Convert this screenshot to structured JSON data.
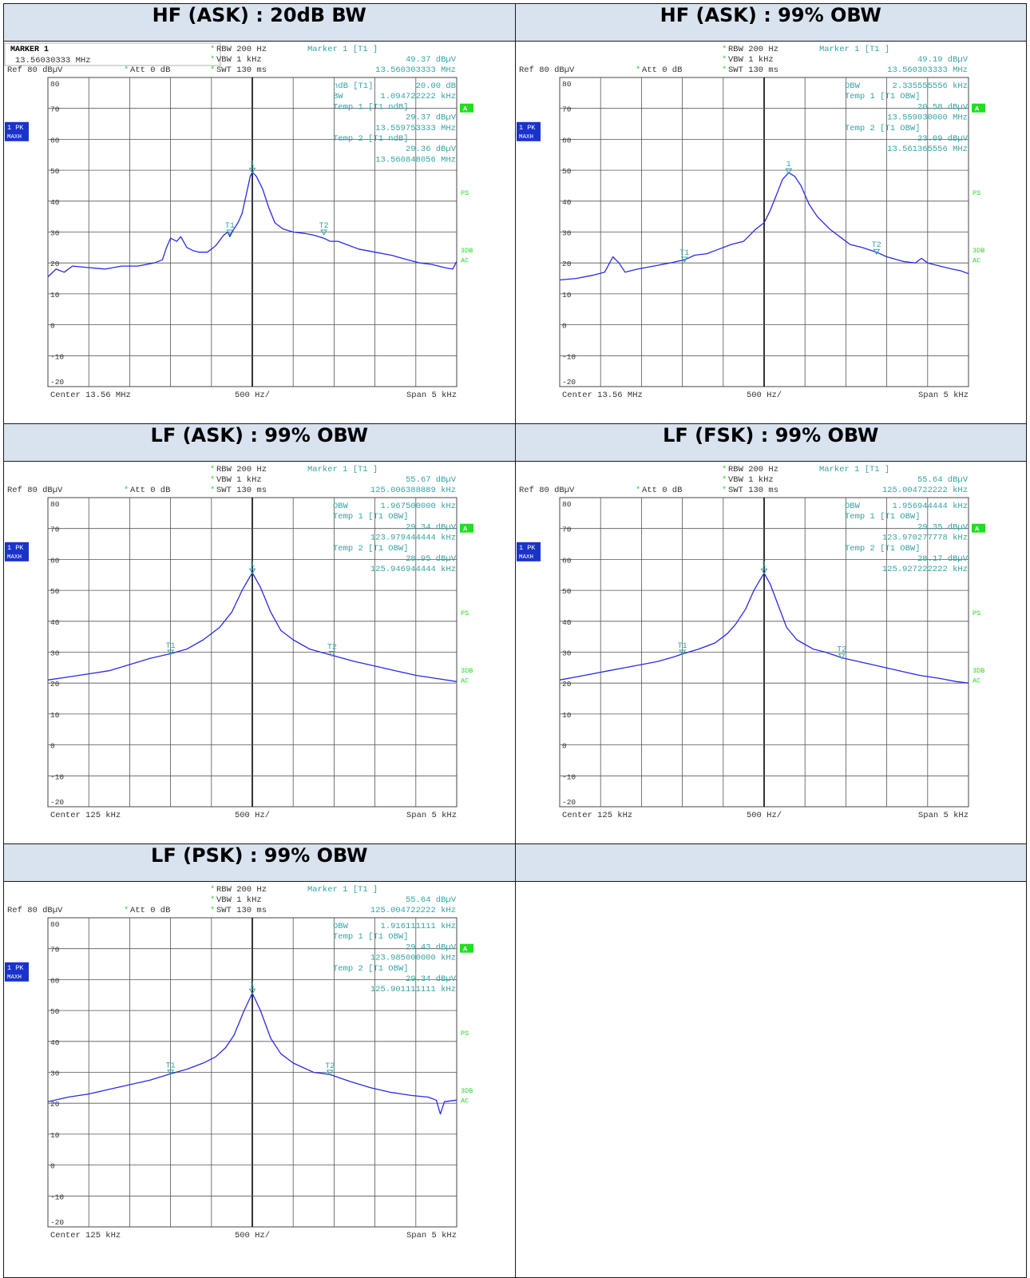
{
  "cells": [
    {
      "title": "HF (ASK) : 20dB BW"
    },
    {
      "title": "HF (ASK) : 99% OBW"
    },
    {
      "title": "LF (ASK) : 99% OBW"
    },
    {
      "title": "LF (FSK) : 99% OBW"
    },
    {
      "title": "LF (PSK) : 99% OBW"
    },
    {
      "title": ""
    }
  ],
  "colors": {
    "trace": "#2a2ae6",
    "info": "#36a3a3",
    "green": "#22dd22",
    "header_bg": "#d9e2ef",
    "badge": "#1a33cc"
  },
  "chart_data": [
    {
      "type": "line",
      "title": "HF (ASK) : 20dB BW",
      "marker_box": {
        "label": "MARKER 1",
        "value": "13.56030333 MHz"
      },
      "settings": {
        "rbw": "RBW 200 Hz",
        "vbw": "VBW 1 kHz",
        "swt": "SWT 130 ms",
        "ref": "Ref  80 dBµV",
        "att": "Att   0 dB"
      },
      "marker": {
        "title": "Marker 1 [T1 ]",
        "level": "49.37 dBµV",
        "freq": "13.560303333 MHz"
      },
      "readout": [
        {
          "k": "ndB [T1]",
          "v": "20.00 dB"
        },
        {
          "k": "BW",
          "v": "1.094722222 kHz"
        },
        {
          "k": "Temp 1 [T1 ndB]",
          "v": ""
        },
        {
          "k": "",
          "v": "29.37 dBµV"
        },
        {
          "k": "",
          "v": "13.559753333 MHz"
        },
        {
          "k": "Temp 2 [T1 ndB]",
          "v": ""
        },
        {
          "k": "",
          "v": "29.36 dBµV"
        },
        {
          "k": "",
          "v": "13.560848056 MHz"
        }
      ],
      "trace_mode": [
        "1 PK",
        "MAXH"
      ],
      "side_labels": {
        "a": "A",
        "ps": "PS",
        "db3": "3DB",
        "ac": "AC"
      },
      "footer": {
        "center": "Center  13.56 MHz",
        "div": "500 Hz/",
        "span": "Span  5 kHz"
      },
      "ylim": [
        -20,
        80
      ],
      "y_ticks": [
        80,
        70,
        60,
        50,
        40,
        30,
        20,
        10,
        0,
        -10,
        -20
      ],
      "x_divisions": 10,
      "grid": true,
      "markers": [
        {
          "label": "1",
          "x": 5.0,
          "y": 49.37
        },
        {
          "label": "T1",
          "x": 4.45,
          "y": 29.37
        },
        {
          "label": "T2",
          "x": 6.75,
          "y": 29.36
        }
      ],
      "points": [
        [
          0,
          15.5
        ],
        [
          0.2,
          18
        ],
        [
          0.4,
          17
        ],
        [
          0.6,
          19
        ],
        [
          1.0,
          18.5
        ],
        [
          1.4,
          18
        ],
        [
          1.8,
          19
        ],
        [
          2.2,
          19
        ],
        [
          2.6,
          20
        ],
        [
          2.8,
          21
        ],
        [
          2.9,
          25
        ],
        [
          3.0,
          28
        ],
        [
          3.15,
          27
        ],
        [
          3.25,
          28.5
        ],
        [
          3.4,
          25
        ],
        [
          3.55,
          24
        ],
        [
          3.7,
          23.5
        ],
        [
          3.9,
          23.5
        ],
        [
          4.1,
          25.5
        ],
        [
          4.3,
          29
        ],
        [
          4.4,
          30
        ],
        [
          4.45,
          28.5
        ],
        [
          4.55,
          31
        ],
        [
          4.65,
          33
        ],
        [
          4.75,
          36
        ],
        [
          4.85,
          42
        ],
        [
          4.95,
          48
        ],
        [
          5.0,
          49.4
        ],
        [
          5.1,
          48
        ],
        [
          5.25,
          44
        ],
        [
          5.4,
          38
        ],
        [
          5.55,
          33
        ],
        [
          5.75,
          31
        ],
        [
          6.0,
          30
        ],
        [
          6.3,
          29.5
        ],
        [
          6.5,
          29
        ],
        [
          6.75,
          28
        ],
        [
          6.9,
          27
        ],
        [
          7.1,
          27
        ],
        [
          7.3,
          26
        ],
        [
          7.6,
          24.5
        ],
        [
          8.0,
          23.5
        ],
        [
          8.4,
          22.5
        ],
        [
          8.8,
          21
        ],
        [
          9.1,
          20
        ],
        [
          9.4,
          19.5
        ],
        [
          9.7,
          18.5
        ],
        [
          9.9,
          18
        ],
        [
          10,
          20.5
        ]
      ]
    },
    {
      "type": "line",
      "title": "HF (ASK) : 99% OBW",
      "settings": {
        "rbw": "RBW 200 Hz",
        "vbw": "VBW 1 kHz",
        "swt": "SWT 130 ms",
        "ref": "Ref  80 dBµV",
        "att": "Att   0 dB"
      },
      "marker": {
        "title": "Marker 1 [T1 ]",
        "level": "49.19 dBµV",
        "freq": "13.560303333 MHz"
      },
      "readout": [
        {
          "k": "OBW",
          "v": "2.335555556 kHz"
        },
        {
          "k": "Temp 1 [T1 OBW]",
          "v": ""
        },
        {
          "k": "",
          "v": "20.58 dBµV"
        },
        {
          "k": "",
          "v": "13.559030000 MHz"
        },
        {
          "k": "Temp 2 [T1 OBW]",
          "v": ""
        },
        {
          "k": "",
          "v": "23.09 dBµV"
        },
        {
          "k": "",
          "v": "13.561365556 MHz"
        }
      ],
      "trace_mode": [
        "1 PK",
        "MAXH"
      ],
      "side_labels": {
        "a": "A",
        "ps": "PS",
        "db3": "3DB",
        "ac": "AC"
      },
      "footer": {
        "center": "Center  13.56 MHz",
        "div": "500 Hz/",
        "span": "Span  5 kHz"
      },
      "ylim": [
        -20,
        80
      ],
      "y_ticks": [
        80,
        70,
        60,
        50,
        40,
        30,
        20,
        10,
        0,
        -10,
        -20
      ],
      "x_divisions": 10,
      "grid": true,
      "markers": [
        {
          "label": "1",
          "x": 5.6,
          "y": 49.19
        },
        {
          "label": "T1",
          "x": 3.05,
          "y": 20.58
        },
        {
          "label": "T2",
          "x": 7.75,
          "y": 23.09
        }
      ],
      "points": [
        [
          0,
          14.5
        ],
        [
          0.4,
          15
        ],
        [
          0.8,
          16
        ],
        [
          1.1,
          17
        ],
        [
          1.3,
          22
        ],
        [
          1.45,
          20
        ],
        [
          1.6,
          17
        ],
        [
          1.9,
          18
        ],
        [
          2.3,
          19
        ],
        [
          2.7,
          20
        ],
        [
          3.05,
          21
        ],
        [
          3.3,
          22.5
        ],
        [
          3.6,
          23
        ],
        [
          3.9,
          24.5
        ],
        [
          4.2,
          26
        ],
        [
          4.5,
          27
        ],
        [
          4.8,
          31
        ],
        [
          5.0,
          33
        ],
        [
          5.15,
          37
        ],
        [
          5.3,
          42
        ],
        [
          5.45,
          47
        ],
        [
          5.6,
          49.2
        ],
        [
          5.75,
          48
        ],
        [
          5.9,
          45
        ],
        [
          6.1,
          39
        ],
        [
          6.3,
          35
        ],
        [
          6.6,
          31
        ],
        [
          6.9,
          28
        ],
        [
          7.1,
          26
        ],
        [
          7.4,
          25
        ],
        [
          7.75,
          23.5
        ],
        [
          8.0,
          22
        ],
        [
          8.4,
          20.5
        ],
        [
          8.7,
          20
        ],
        [
          8.85,
          21.5
        ],
        [
          9.0,
          20
        ],
        [
          9.3,
          19
        ],
        [
          9.6,
          18
        ],
        [
          9.8,
          17.5
        ],
        [
          10,
          16.5
        ]
      ]
    },
    {
      "type": "line",
      "title": "LF (ASK) : 99% OBW",
      "settings": {
        "rbw": "RBW 200 Hz",
        "vbw": "VBW 1 kHz",
        "swt": "SWT 130 ms",
        "ref": "Ref  80 dBµV",
        "att": "Att   0 dB"
      },
      "marker": {
        "title": "Marker 1 [T1 ]",
        "level": "55.67 dBµV",
        "freq": "125.006388889 kHz"
      },
      "readout": [
        {
          "k": "OBW",
          "v": "1.967500000 kHz"
        },
        {
          "k": "Temp 1 [T1 OBW]",
          "v": ""
        },
        {
          "k": "",
          "v": "29.34 dBµV"
        },
        {
          "k": "",
          "v": "123.979444444 kHz"
        },
        {
          "k": "Temp 2 [T1 OBW]",
          "v": ""
        },
        {
          "k": "",
          "v": "28.95 dBµV"
        },
        {
          "k": "",
          "v": "125.946944444 kHz"
        }
      ],
      "trace_mode": [
        "1 PK",
        "MAXH"
      ],
      "side_labels": {
        "a": "A",
        "ps": "PS",
        "db3": "3DB",
        "ac": "AC"
      },
      "footer": {
        "center": "Center  125 kHz",
        "div": "500 Hz/",
        "span": "Span  5 kHz"
      },
      "ylim": [
        -20,
        80
      ],
      "y_ticks": [
        80,
        70,
        60,
        50,
        40,
        30,
        20,
        10,
        0,
        -10,
        -20
      ],
      "x_divisions": 10,
      "grid": true,
      "markers": [
        {
          "label": "1",
          "x": 5.0,
          "y": 55.67
        },
        {
          "label": "T1",
          "x": 3.0,
          "y": 29.34
        },
        {
          "label": "T2",
          "x": 6.95,
          "y": 28.95
        }
      ],
      "points": [
        [
          0,
          21
        ],
        [
          0.5,
          22
        ],
        [
          1.0,
          23
        ],
        [
          1.5,
          24
        ],
        [
          2.0,
          26
        ],
        [
          2.5,
          28
        ],
        [
          3.0,
          29.5
        ],
        [
          3.4,
          31
        ],
        [
          3.8,
          34
        ],
        [
          4.2,
          38
        ],
        [
          4.5,
          43
        ],
        [
          4.75,
          50
        ],
        [
          5.0,
          55.7
        ],
        [
          5.2,
          51
        ],
        [
          5.45,
          43
        ],
        [
          5.7,
          37
        ],
        [
          6.0,
          34
        ],
        [
          6.4,
          31
        ],
        [
          6.95,
          29
        ],
        [
          7.5,
          27
        ],
        [
          8.0,
          25.5
        ],
        [
          8.5,
          24
        ],
        [
          9.0,
          22.5
        ],
        [
          9.5,
          21.5
        ],
        [
          10,
          20.5
        ]
      ]
    },
    {
      "type": "line",
      "title": "LF (FSK) : 99% OBW",
      "settings": {
        "rbw": "RBW 200 Hz",
        "vbw": "VBW 1 kHz",
        "swt": "SWT 130 ms",
        "ref": "Ref  80 dBµV",
        "att": "Att   0 dB"
      },
      "marker": {
        "title": "Marker 1 [T1 ]",
        "level": "55.64 dBµV",
        "freq": "125.004722222 kHz"
      },
      "readout": [
        {
          "k": "OBW",
          "v": "1.956944444 kHz"
        },
        {
          "k": "Temp 1 [T1 OBW]",
          "v": ""
        },
        {
          "k": "",
          "v": "29.35 dBµV"
        },
        {
          "k": "",
          "v": "123.970277778 kHz"
        },
        {
          "k": "Temp 2 [T1 OBW]",
          "v": ""
        },
        {
          "k": "",
          "v": "28.17 dBµV"
        },
        {
          "k": "",
          "v": "125.927222222 kHz"
        }
      ],
      "trace_mode": [
        "1 PK",
        "MAXH"
      ],
      "side_labels": {
        "a": "A",
        "ps": "PS",
        "db3": "3DB",
        "ac": "AC"
      },
      "footer": {
        "center": "Center  125 kHz",
        "div": "500 Hz/",
        "span": "Span  5 kHz"
      },
      "ylim": [
        -20,
        80
      ],
      "y_ticks": [
        80,
        70,
        60,
        50,
        40,
        30,
        20,
        10,
        0,
        -10,
        -20
      ],
      "x_divisions": 10,
      "grid": true,
      "markers": [
        {
          "label": "1",
          "x": 5.0,
          "y": 55.64
        },
        {
          "label": "T1",
          "x": 3.0,
          "y": 29.35
        },
        {
          "label": "T2",
          "x": 6.9,
          "y": 28.17
        }
      ],
      "points": [
        [
          0,
          21
        ],
        [
          0.4,
          22
        ],
        [
          0.8,
          23
        ],
        [
          1.2,
          24
        ],
        [
          1.6,
          25
        ],
        [
          2.0,
          26
        ],
        [
          2.4,
          27
        ],
        [
          2.8,
          28.5
        ],
        [
          3.0,
          29.4
        ],
        [
          3.4,
          31
        ],
        [
          3.8,
          33
        ],
        [
          4.1,
          36
        ],
        [
          4.3,
          39
        ],
        [
          4.55,
          44
        ],
        [
          4.75,
          50
        ],
        [
          5.0,
          55.6
        ],
        [
          5.15,
          52
        ],
        [
          5.35,
          45
        ],
        [
          5.55,
          38
        ],
        [
          5.8,
          34
        ],
        [
          6.2,
          31
        ],
        [
          6.5,
          30
        ],
        [
          6.9,
          28.2
        ],
        [
          7.3,
          27
        ],
        [
          7.8,
          25.5
        ],
        [
          8.3,
          24
        ],
        [
          8.8,
          22.5
        ],
        [
          9.3,
          21.5
        ],
        [
          9.7,
          20.5
        ],
        [
          10,
          20
        ]
      ]
    },
    {
      "type": "line",
      "title": "LF (PSK) : 99% OBW",
      "settings": {
        "rbw": "RBW 200 Hz",
        "vbw": "VBW 1 kHz",
        "swt": "SWT 130 ms",
        "ref": "Ref  80 dBµV",
        "att": "Att   0 dB"
      },
      "marker": {
        "title": "Marker 1 [T1 ]",
        "level": "55.64 dBµV",
        "freq": "125.004722222 kHz"
      },
      "readout": [
        {
          "k": "OBW",
          "v": "1.916111111 kHz"
        },
        {
          "k": "Temp 1 [T1 OBW]",
          "v": ""
        },
        {
          "k": "",
          "v": "29.43 dBµV"
        },
        {
          "k": "",
          "v": "123.985000000 kHz"
        },
        {
          "k": "Temp 2 [T1 OBW]",
          "v": ""
        },
        {
          "k": "",
          "v": "29.34 dBµV"
        },
        {
          "k": "",
          "v": "125.901111111 kHz"
        }
      ],
      "trace_mode": [
        "1 PK",
        "MAXH"
      ],
      "side_labels": {
        "a": "A",
        "ps": "PS",
        "db3": "3DB",
        "ac": "AC"
      },
      "footer": {
        "center": "Center  125 kHz",
        "div": "500 Hz/",
        "span": "Span  5 kHz"
      },
      "ylim": [
        -20,
        80
      ],
      "y_ticks": [
        80,
        70,
        60,
        50,
        40,
        30,
        20,
        10,
        0,
        -10,
        -20
      ],
      "x_divisions": 10,
      "grid": true,
      "markers": [
        {
          "label": "1",
          "x": 5.0,
          "y": 55.64
        },
        {
          "label": "T1",
          "x": 3.0,
          "y": 29.43
        },
        {
          "label": "T2",
          "x": 6.9,
          "y": 29.34
        }
      ],
      "points": [
        [
          0,
          20.5
        ],
        [
          0.5,
          22
        ],
        [
          1.0,
          23
        ],
        [
          1.5,
          24.5
        ],
        [
          2.0,
          26
        ],
        [
          2.5,
          27.5
        ],
        [
          3.0,
          29.5
        ],
        [
          3.4,
          31
        ],
        [
          3.8,
          33
        ],
        [
          4.1,
          35
        ],
        [
          4.35,
          38
        ],
        [
          4.55,
          42
        ],
        [
          4.8,
          50
        ],
        [
          5.0,
          55.6
        ],
        [
          5.2,
          50
        ],
        [
          5.45,
          41
        ],
        [
          5.7,
          36
        ],
        [
          6.0,
          33
        ],
        [
          6.5,
          30
        ],
        [
          6.9,
          29.3
        ],
        [
          7.4,
          27
        ],
        [
          7.9,
          25
        ],
        [
          8.4,
          23.5
        ],
        [
          8.9,
          22.5
        ],
        [
          9.3,
          22
        ],
        [
          9.5,
          21
        ],
        [
          9.6,
          16.5
        ],
        [
          9.7,
          20.5
        ],
        [
          10,
          21
        ]
      ]
    }
  ]
}
